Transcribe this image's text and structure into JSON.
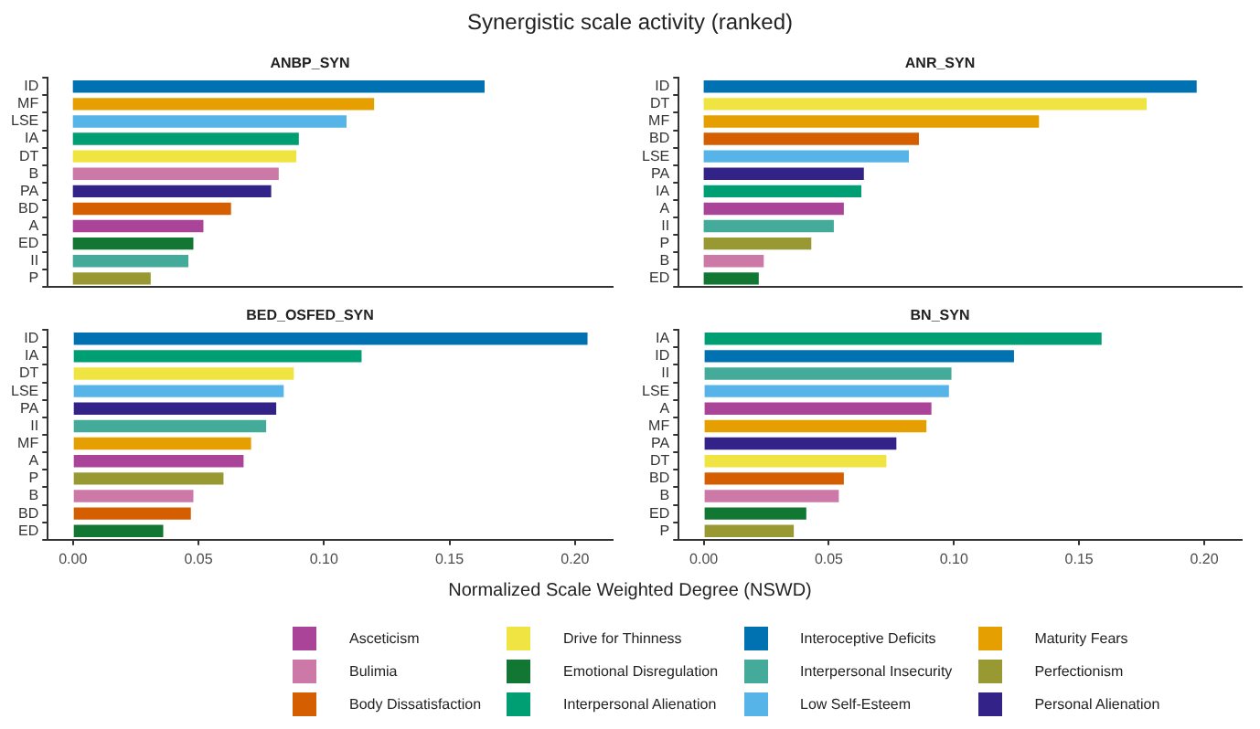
{
  "chart_data": [
    {
      "type": "bar",
      "orientation": "horizontal",
      "title": "ANBP_SYN",
      "annotations": [
        "Synergistic scale activity (ranked)"
      ],
      "categories": [
        "ID",
        "MF",
        "LSE",
        "IA",
        "DT",
        "B",
        "PA",
        "BD",
        "A",
        "ED",
        "II",
        "P"
      ],
      "xlim": [
        -0.01,
        0.215
      ],
      "tick_labels": "y",
      "grid": false,
      "legend": "bottom",
      "series": [
        {
          "name": "Asceticism",
          "color": "#aa4499",
          "values": [
            null,
            null,
            null,
            null,
            null,
            null,
            null,
            null,
            0.052,
            null,
            null,
            null
          ]
        },
        {
          "name": "Bulimia",
          "color": "#cc79a7",
          "values": [
            null,
            null,
            null,
            null,
            null,
            0.082,
            null,
            null,
            null,
            null,
            null,
            null
          ]
        },
        {
          "name": "Body Dissatisfaction",
          "color": "#d55e00",
          "values": [
            null,
            null,
            null,
            null,
            null,
            null,
            null,
            0.063,
            null,
            null,
            null,
            null
          ]
        },
        {
          "name": "Drive for Thinness",
          "color": "#f0e442",
          "values": [
            null,
            null,
            null,
            null,
            0.089,
            null,
            null,
            null,
            null,
            null,
            null,
            null
          ]
        },
        {
          "name": "Emotional Disregulation",
          "color": "#117733",
          "values": [
            null,
            null,
            null,
            null,
            null,
            null,
            null,
            null,
            null,
            0.048,
            null,
            null
          ]
        },
        {
          "name": "Interpersonal Alienation",
          "color": "#009e73",
          "values": [
            null,
            null,
            null,
            0.09,
            null,
            null,
            null,
            null,
            null,
            null,
            null,
            null
          ]
        },
        {
          "name": "Interoceptive Deficits",
          "color": "#0072b2",
          "values": [
            0.164,
            null,
            null,
            null,
            null,
            null,
            null,
            null,
            null,
            null,
            null,
            null
          ]
        },
        {
          "name": "Interpersonal Insecurity",
          "color": "#44aa99",
          "values": [
            null,
            null,
            null,
            null,
            null,
            null,
            null,
            null,
            null,
            null,
            0.046,
            null
          ]
        },
        {
          "name": "Low Self-Esteem",
          "color": "#56b4e9",
          "values": [
            null,
            null,
            0.109,
            null,
            null,
            null,
            null,
            null,
            null,
            null,
            null,
            null
          ]
        },
        {
          "name": "Maturity Fears",
          "color": "#e69f00",
          "values": [
            null,
            0.12,
            null,
            null,
            null,
            null,
            null,
            null,
            null,
            null,
            null,
            null
          ]
        },
        {
          "name": "Perfectionism",
          "color": "#999933",
          "values": [
            null,
            null,
            null,
            null,
            null,
            null,
            null,
            null,
            null,
            null,
            null,
            0.031
          ]
        },
        {
          "name": "Personal Alienation",
          "color": "#332288",
          "values": [
            null,
            null,
            null,
            null,
            null,
            null,
            0.079,
            null,
            null,
            null,
            null,
            null
          ]
        }
      ]
    },
    {
      "type": "bar",
      "orientation": "horizontal",
      "title": "ANR_SYN",
      "categories": [
        "ID",
        "DT",
        "MF",
        "BD",
        "LSE",
        "PA",
        "IA",
        "A",
        "II",
        "P",
        "B",
        "ED"
      ],
      "xlim": [
        -0.01,
        0.215
      ],
      "tick_labels": "y",
      "grid": false,
      "series": [
        {
          "color": "#aa4499",
          "values": [
            null,
            null,
            null,
            null,
            null,
            null,
            null,
            0.056,
            null,
            null,
            null,
            null
          ]
        },
        {
          "color": "#cc79a7",
          "values": [
            null,
            null,
            null,
            null,
            null,
            null,
            null,
            null,
            null,
            null,
            0.024,
            null
          ]
        },
        {
          "color": "#d55e00",
          "values": [
            null,
            null,
            null,
            0.086,
            null,
            null,
            null,
            null,
            null,
            null,
            null,
            null
          ]
        },
        {
          "color": "#f0e442",
          "values": [
            null,
            0.177,
            null,
            null,
            null,
            null,
            null,
            null,
            null,
            null,
            null,
            null
          ]
        },
        {
          "color": "#117733",
          "values": [
            null,
            null,
            null,
            null,
            null,
            null,
            null,
            null,
            null,
            null,
            null,
            0.022
          ]
        },
        {
          "color": "#009e73",
          "values": [
            null,
            null,
            null,
            null,
            null,
            null,
            0.063,
            null,
            null,
            null,
            null,
            null
          ]
        },
        {
          "color": "#0072b2",
          "values": [
            0.197,
            null,
            null,
            null,
            null,
            null,
            null,
            null,
            null,
            null,
            null,
            null
          ]
        },
        {
          "color": "#44aa99",
          "values": [
            null,
            null,
            null,
            null,
            null,
            null,
            null,
            null,
            0.052,
            null,
            null,
            null
          ]
        },
        {
          "color": "#56b4e9",
          "values": [
            null,
            null,
            null,
            null,
            0.082,
            null,
            null,
            null,
            null,
            null,
            null,
            null
          ]
        },
        {
          "color": "#e69f00",
          "values": [
            null,
            null,
            0.134,
            null,
            null,
            null,
            null,
            null,
            null,
            null,
            null,
            null
          ]
        },
        {
          "color": "#999933",
          "values": [
            null,
            null,
            null,
            null,
            null,
            null,
            null,
            null,
            null,
            0.043,
            null,
            null
          ]
        },
        {
          "color": "#332288",
          "values": [
            null,
            null,
            null,
            null,
            null,
            0.064,
            null,
            null,
            null,
            null,
            null,
            null
          ]
        }
      ]
    },
    {
      "type": "bar",
      "orientation": "horizontal",
      "title": "BED_OSFED_SYN",
      "xlabel": "Normalized Scale Weighted Degree (NSWD)",
      "categories": [
        "ID",
        "IA",
        "DT",
        "LSE",
        "PA",
        "II",
        "MF",
        "A",
        "P",
        "B",
        "BD",
        "ED"
      ],
      "xlim": [
        -0.01,
        0.215
      ],
      "xticks": [
        {
          "value": 0,
          "label": "0.00"
        },
        {
          "value": 0.05,
          "label": "0.05"
        },
        {
          "value": 0.1,
          "label": "0.10"
        },
        {
          "value": 0.15,
          "label": "0.15"
        },
        {
          "value": 0.2,
          "label": "0.20"
        }
      ],
      "grid": false,
      "series": [
        {
          "color": "#aa4499",
          "values": [
            null,
            null,
            null,
            null,
            null,
            null,
            null,
            0.068,
            null,
            null,
            null,
            null
          ]
        },
        {
          "color": "#cc79a7",
          "values": [
            null,
            null,
            null,
            null,
            null,
            null,
            null,
            null,
            null,
            0.048,
            null,
            null
          ]
        },
        {
          "color": "#d55e00",
          "values": [
            null,
            null,
            null,
            null,
            null,
            null,
            null,
            null,
            null,
            null,
            0.047,
            null
          ]
        },
        {
          "color": "#f0e442",
          "values": [
            null,
            null,
            0.088,
            null,
            null,
            null,
            null,
            null,
            null,
            null,
            null,
            null
          ]
        },
        {
          "color": "#117733",
          "values": [
            null,
            null,
            null,
            null,
            null,
            null,
            null,
            null,
            null,
            null,
            null,
            0.036
          ]
        },
        {
          "color": "#009e73",
          "values": [
            null,
            0.115,
            null,
            null,
            null,
            null,
            null,
            null,
            null,
            null,
            null,
            null
          ]
        },
        {
          "color": "#0072b2",
          "values": [
            0.205,
            null,
            null,
            null,
            null,
            null,
            null,
            null,
            null,
            null,
            null,
            null
          ]
        },
        {
          "color": "#44aa99",
          "values": [
            null,
            null,
            null,
            null,
            null,
            0.077,
            null,
            null,
            null,
            null,
            null,
            null
          ]
        },
        {
          "color": "#56b4e9",
          "values": [
            null,
            null,
            null,
            0.084,
            null,
            null,
            null,
            null,
            null,
            null,
            null,
            null
          ]
        },
        {
          "color": "#e69f00",
          "values": [
            null,
            null,
            null,
            null,
            null,
            null,
            0.071,
            null,
            null,
            null,
            null,
            null
          ]
        },
        {
          "color": "#999933",
          "values": [
            null,
            null,
            null,
            null,
            null,
            null,
            null,
            null,
            0.06,
            null,
            null,
            null
          ]
        },
        {
          "color": "#332288",
          "values": [
            null,
            null,
            null,
            null,
            0.081,
            null,
            null,
            null,
            null,
            null,
            null,
            null
          ]
        }
      ]
    },
    {
      "type": "bar",
      "orientation": "horizontal",
      "title": "BN_SYN",
      "categories": [
        "IA",
        "ID",
        "II",
        "LSE",
        "A",
        "MF",
        "PA",
        "DT",
        "BD",
        "B",
        "ED",
        "P"
      ],
      "xlim": [
        -0.01,
        0.215
      ],
      "xticks": [
        {
          "value": 0,
          "label": "0.00"
        },
        {
          "value": 0.05,
          "label": "0.05"
        },
        {
          "value": 0.1,
          "label": "0.10"
        },
        {
          "value": 0.15,
          "label": "0.15"
        },
        {
          "value": 0.2,
          "label": "0.20"
        }
      ],
      "grid": false,
      "series": [
        {
          "color": "#aa4499",
          "values": [
            null,
            null,
            null,
            null,
            0.091,
            null,
            null,
            null,
            null,
            null,
            null,
            null
          ]
        },
        {
          "color": "#cc79a7",
          "values": [
            null,
            null,
            null,
            null,
            null,
            null,
            null,
            null,
            null,
            0.054,
            null,
            null
          ]
        },
        {
          "color": "#d55e00",
          "values": [
            null,
            null,
            null,
            null,
            null,
            null,
            null,
            null,
            0.056,
            null,
            null,
            null
          ]
        },
        {
          "color": "#f0e442",
          "values": [
            null,
            null,
            null,
            null,
            null,
            null,
            null,
            0.073,
            null,
            null,
            null,
            null
          ]
        },
        {
          "color": "#117733",
          "values": [
            null,
            null,
            null,
            null,
            null,
            null,
            null,
            null,
            null,
            null,
            0.041,
            null
          ]
        },
        {
          "color": "#009e73",
          "values": [
            0.159,
            null,
            null,
            null,
            null,
            null,
            null,
            null,
            null,
            null,
            null,
            null
          ]
        },
        {
          "color": "#0072b2",
          "values": [
            null,
            0.124,
            null,
            null,
            null,
            null,
            null,
            null,
            null,
            null,
            null,
            null
          ]
        },
        {
          "color": "#44aa99",
          "values": [
            null,
            null,
            0.099,
            null,
            null,
            null,
            null,
            null,
            null,
            null,
            null,
            null
          ]
        },
        {
          "color": "#56b4e9",
          "values": [
            null,
            null,
            null,
            0.098,
            null,
            null,
            null,
            null,
            null,
            null,
            null,
            null
          ]
        },
        {
          "color": "#e69f00",
          "values": [
            null,
            null,
            null,
            null,
            null,
            0.089,
            null,
            null,
            null,
            null,
            null,
            null
          ]
        },
        {
          "color": "#999933",
          "values": [
            null,
            null,
            null,
            null,
            null,
            null,
            null,
            null,
            null,
            null,
            null,
            0.036
          ]
        },
        {
          "color": "#332288",
          "values": [
            null,
            null,
            null,
            null,
            null,
            null,
            0.077,
            null,
            null,
            null,
            null,
            null
          ]
        }
      ]
    }
  ]
}
